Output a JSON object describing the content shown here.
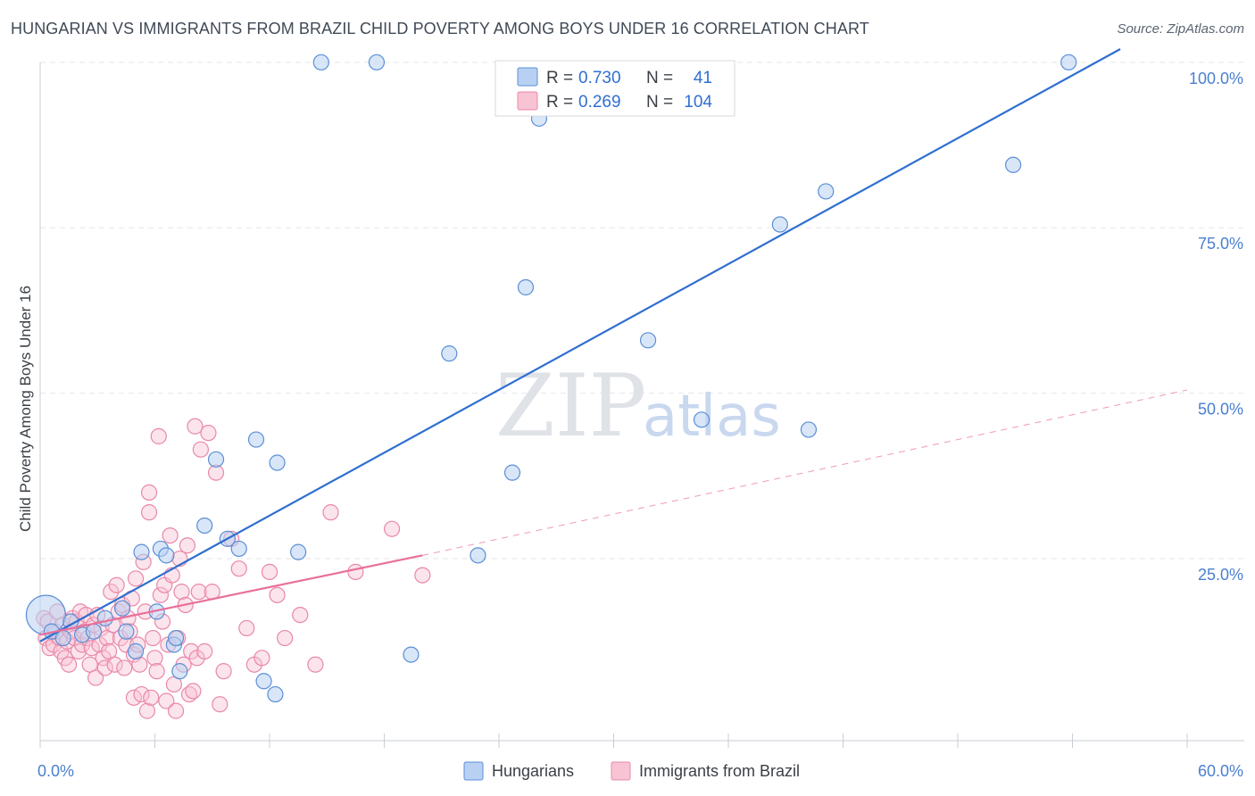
{
  "header": {
    "title": "HUNGARIAN VS IMMIGRANTS FROM BRAZIL CHILD POVERTY AMONG BOYS UNDER 16 CORRELATION CHART",
    "source": "Source: ZipAtlas.com"
  },
  "watermark": {
    "zip": "ZIP",
    "atlas": "atlas"
  },
  "legend": {
    "r_label": "R =",
    "n_label": "N =",
    "rows": [
      {
        "name": "Hungarians",
        "r": "0.730",
        "n": "41"
      },
      {
        "name": "Immigrants from Brazil",
        "r": "0.269",
        "n": "104"
      }
    ]
  },
  "colors": {
    "blue_fill": "#b8d1f2",
    "blue_stroke": "#5b8fd6",
    "blue_line": "#2f6fd0",
    "pink_fill": "#f8c4d4",
    "pink_stroke": "#e888a8",
    "pink_line": "#e8709a",
    "grid": "#e3e6ea",
    "axis_text": "#4a7fd0"
  },
  "chart_data": {
    "type": "scatter",
    "title": "HUNGARIAN VS IMMIGRANTS FROM BRAZIL CHILD POVERTY AMONG BOYS UNDER 16 CORRELATION CHART",
    "xlabel": "",
    "ylabel": "Child Poverty Among Boys Under 16",
    "xlim": [
      0,
      60
    ],
    "ylim": [
      -2.5,
      102
    ],
    "x_tick_labels": [
      "0.0%",
      "60.0%"
    ],
    "y_ticks": [
      {
        "value": 25,
        "label": "25.0%"
      },
      {
        "value": 50,
        "label": "50.0%"
      },
      {
        "value": 75,
        "label": "75.0%"
      },
      {
        "value": 100,
        "label": "100.0%"
      }
    ],
    "legend_position": "top-center",
    "series": [
      {
        "name": "Hungarians",
        "r": 0.73,
        "n": 41,
        "trend": {
          "x1": 0,
          "y1": 12.5,
          "x2": 56.5,
          "y2": 102,
          "dashed_to": 56.5
        },
        "points": [
          [
            0.3,
            16.5,
            3
          ],
          [
            0.6,
            14,
            1
          ],
          [
            1.2,
            13,
            1
          ],
          [
            1.6,
            15.5,
            1
          ],
          [
            2.2,
            13.5,
            1
          ],
          [
            2.8,
            14,
            1
          ],
          [
            3.4,
            16,
            1
          ],
          [
            4.3,
            17.5,
            1
          ],
          [
            4.5,
            14,
            1
          ],
          [
            5.0,
            11,
            1
          ],
          [
            5.3,
            26,
            1
          ],
          [
            6.1,
            17,
            1
          ],
          [
            6.3,
            26.5,
            1
          ],
          [
            6.6,
            25.5,
            1
          ],
          [
            7.0,
            12,
            1
          ],
          [
            7.1,
            13,
            1
          ],
          [
            7.3,
            8,
            1
          ],
          [
            8.6,
            30,
            1
          ],
          [
            9.2,
            40,
            1
          ],
          [
            9.8,
            28,
            1
          ],
          [
            10.4,
            26.5,
            1
          ],
          [
            11.3,
            43,
            1
          ],
          [
            11.7,
            6.5,
            1
          ],
          [
            12.3,
            4.5,
            1
          ],
          [
            12.4,
            39.5,
            1
          ],
          [
            13.5,
            26,
            1
          ],
          [
            14.7,
            100,
            1
          ],
          [
            17.6,
            100,
            1
          ],
          [
            19.4,
            10.5,
            1
          ],
          [
            21.4,
            56,
            1
          ],
          [
            22.9,
            25.5,
            1
          ],
          [
            24.7,
            38,
            1
          ],
          [
            25.4,
            66,
            1
          ],
          [
            26.1,
            91.5,
            1
          ],
          [
            31.8,
            58,
            1
          ],
          [
            34.6,
            46,
            1
          ],
          [
            38.7,
            75.5,
            1
          ],
          [
            40.2,
            44.5,
            1
          ],
          [
            41.1,
            80.5,
            1
          ],
          [
            50.9,
            84.5,
            1
          ],
          [
            53.8,
            100,
            1
          ]
        ]
      },
      {
        "name": "Immigrants from Brazil",
        "r": 0.269,
        "n": 104,
        "trend": {
          "x1": 0,
          "y1": 13.5,
          "x2": 20,
          "y2": 25.5,
          "dashed_to": 60,
          "dashed_y": 50.5
        },
        "points": [
          [
            0.2,
            16
          ],
          [
            0.3,
            13
          ],
          [
            0.4,
            15.5
          ],
          [
            0.5,
            11.5
          ],
          [
            0.7,
            12
          ],
          [
            0.8,
            14
          ],
          [
            0.9,
            17
          ],
          [
            1.0,
            13
          ],
          [
            1.1,
            11
          ],
          [
            1.2,
            15
          ],
          [
            1.3,
            10
          ],
          [
            1.4,
            12.5
          ],
          [
            1.5,
            9
          ],
          [
            1.6,
            14
          ],
          [
            1.7,
            16
          ],
          [
            1.8,
            13
          ],
          [
            1.9,
            15.5
          ],
          [
            2.0,
            11
          ],
          [
            2.1,
            17
          ],
          [
            2.2,
            12
          ],
          [
            2.3,
            14
          ],
          [
            2.4,
            16.5
          ],
          [
            2.5,
            13
          ],
          [
            2.6,
            9
          ],
          [
            2.7,
            11.5
          ],
          [
            2.8,
            15
          ],
          [
            2.9,
            7
          ],
          [
            3.0,
            16.5
          ],
          [
            3.1,
            12
          ],
          [
            3.2,
            14.5
          ],
          [
            3.3,
            10
          ],
          [
            3.4,
            8.5
          ],
          [
            3.5,
            13
          ],
          [
            3.6,
            11
          ],
          [
            3.7,
            20
          ],
          [
            3.8,
            15
          ],
          [
            3.9,
            9
          ],
          [
            4.0,
            21
          ],
          [
            4.1,
            17
          ],
          [
            4.2,
            13
          ],
          [
            4.3,
            18
          ],
          [
            4.4,
            8.5
          ],
          [
            4.5,
            12
          ],
          [
            4.6,
            16
          ],
          [
            4.7,
            14
          ],
          [
            4.8,
            19
          ],
          [
            4.9,
            10.5
          ],
          [
            4.9,
            4
          ],
          [
            5.0,
            22
          ],
          [
            5.1,
            12
          ],
          [
            5.2,
            9
          ],
          [
            5.3,
            4.5
          ],
          [
            5.4,
            24.5
          ],
          [
            5.5,
            17
          ],
          [
            5.6,
            2
          ],
          [
            5.7,
            32
          ],
          [
            5.7,
            35
          ],
          [
            5.8,
            4
          ],
          [
            5.9,
            13
          ],
          [
            6.0,
            10
          ],
          [
            6.1,
            8
          ],
          [
            6.2,
            43.5
          ],
          [
            6.3,
            19.5
          ],
          [
            6.4,
            15.5
          ],
          [
            6.5,
            21
          ],
          [
            6.6,
            3.5
          ],
          [
            6.7,
            12
          ],
          [
            6.8,
            28.5
          ],
          [
            6.9,
            22.5
          ],
          [
            7.0,
            6
          ],
          [
            7.1,
            2
          ],
          [
            7.2,
            13
          ],
          [
            7.3,
            25
          ],
          [
            7.4,
            20
          ],
          [
            7.5,
            9
          ],
          [
            7.6,
            18
          ],
          [
            7.7,
            27
          ],
          [
            7.8,
            4.5
          ],
          [
            7.9,
            11
          ],
          [
            8.0,
            5
          ],
          [
            8.1,
            45
          ],
          [
            8.2,
            10
          ],
          [
            8.3,
            20
          ],
          [
            8.4,
            41.5
          ],
          [
            8.6,
            11
          ],
          [
            8.8,
            44
          ],
          [
            9.0,
            20
          ],
          [
            9.2,
            38
          ],
          [
            9.4,
            3
          ],
          [
            9.6,
            8
          ],
          [
            10.0,
            28
          ],
          [
            10.4,
            23.5
          ],
          [
            10.8,
            14.5
          ],
          [
            11.2,
            9
          ],
          [
            11.6,
            10
          ],
          [
            12.0,
            23
          ],
          [
            12.4,
            19.5
          ],
          [
            12.8,
            13
          ],
          [
            13.6,
            16.5
          ],
          [
            14.4,
            9
          ],
          [
            15.2,
            32
          ],
          [
            16.5,
            23
          ],
          [
            18.4,
            29.5
          ],
          [
            20.0,
            22.5
          ]
        ]
      }
    ]
  }
}
